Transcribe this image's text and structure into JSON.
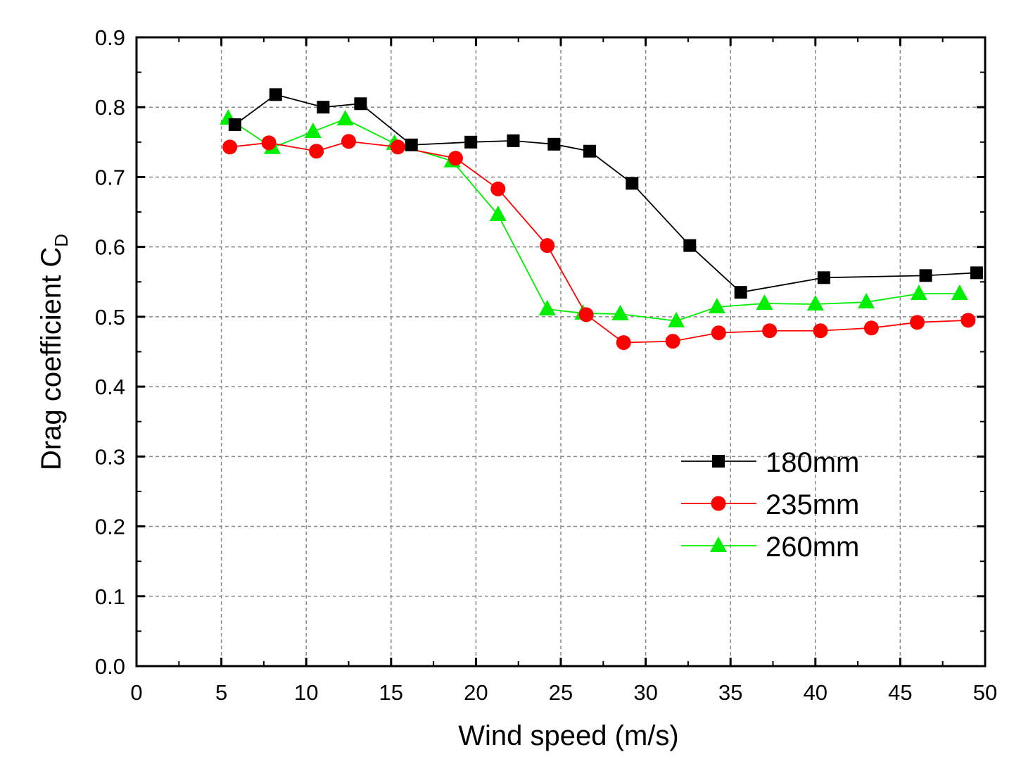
{
  "chart_data": {
    "type": "line",
    "title": "",
    "xlabel": "Wind speed (m/s)",
    "ylabel": "Drag coefficient C",
    "ylabel_subscript": "D",
    "xlim": [
      0,
      50
    ],
    "ylim": [
      0,
      0.9
    ],
    "xticks": [
      "0",
      "5",
      "10",
      "15",
      "20",
      "25",
      "30",
      "35",
      "40",
      "45",
      "50"
    ],
    "yticks": [
      "0.0",
      "0.1",
      "0.2",
      "0.3",
      "0.4",
      "0.5",
      "0.6",
      "0.7",
      "0.8",
      "0.9"
    ],
    "grid": true,
    "legend_position": "center-right",
    "series": [
      {
        "name": "180mm",
        "color": "#000000",
        "marker": "square",
        "x": [
          5.8,
          8.2,
          11.0,
          13.2,
          16.2,
          19.7,
          22.2,
          24.6,
          26.7,
          29.2,
          32.6,
          35.6,
          40.5,
          46.5,
          49.5
        ],
        "y": [
          0.775,
          0.818,
          0.8,
          0.805,
          0.746,
          0.75,
          0.752,
          0.747,
          0.737,
          0.691,
          0.602,
          0.535,
          0.556,
          0.559,
          0.563
        ]
      },
      {
        "name": "235mm",
        "color": "#ff0000",
        "marker": "circle",
        "x": [
          5.5,
          7.8,
          10.6,
          12.5,
          15.4,
          18.8,
          21.3,
          24.2,
          26.5,
          28.7,
          31.6,
          34.3,
          37.3,
          40.3,
          43.3,
          46.0,
          49.0
        ],
        "y": [
          0.743,
          0.749,
          0.737,
          0.751,
          0.743,
          0.727,
          0.683,
          0.602,
          0.503,
          0.463,
          0.465,
          0.477,
          0.48,
          0.48,
          0.484,
          0.492,
          0.495
        ]
      },
      {
        "name": "260mm",
        "color": "#00ee00",
        "marker": "triangle",
        "x": [
          5.4,
          8.0,
          10.4,
          12.3,
          15.2,
          18.6,
          21.3,
          24.2,
          26.3,
          28.5,
          31.8,
          34.2,
          37.0,
          40.0,
          43.0,
          46.1,
          48.5
        ],
        "y": [
          0.784,
          0.742,
          0.765,
          0.783,
          0.748,
          0.723,
          0.646,
          0.511,
          0.505,
          0.504,
          0.494,
          0.514,
          0.519,
          0.518,
          0.521,
          0.533,
          0.533
        ]
      }
    ]
  }
}
